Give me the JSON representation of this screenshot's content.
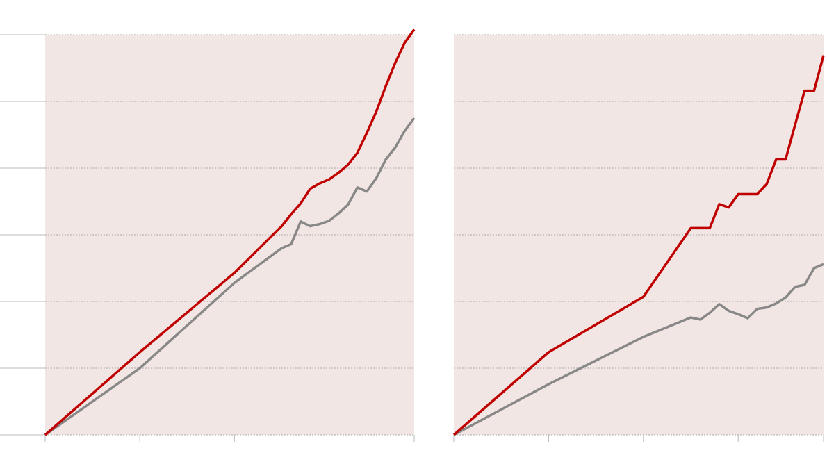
{
  "chart_data": [
    {
      "type": "line",
      "xlim": [
        0,
        3.9
      ],
      "xticks": [
        0,
        1,
        2,
        3,
        3.9
      ],
      "ylim": [
        0,
        6
      ],
      "yticks": [
        0,
        1,
        2,
        3,
        4,
        5,
        6
      ],
      "grid": true,
      "background": "#f2e6e4",
      "series": [
        {
          "color": "#c00000",
          "x": [
            0,
            1,
            2,
            2.5,
            2.6,
            2.7,
            2.8,
            2.9,
            3.0,
            3.1,
            3.2,
            3.3,
            3.4,
            3.5,
            3.6,
            3.7,
            3.8,
            3.9
          ],
          "values": [
            0,
            1.24,
            2.43,
            3.13,
            3.31,
            3.47,
            3.69,
            3.77,
            3.83,
            3.93,
            4.05,
            4.23,
            4.53,
            4.85,
            5.23,
            5.58,
            5.88,
            6.08
          ]
        },
        {
          "color": "#888888",
          "x": [
            0,
            1,
            2,
            2.5,
            2.6,
            2.7,
            2.8,
            2.9,
            3.0,
            3.1,
            3.2,
            3.3,
            3.4,
            3.5,
            3.6,
            3.7,
            3.8,
            3.9
          ],
          "values": [
            0,
            1.0,
            2.28,
            2.8,
            2.86,
            3.2,
            3.13,
            3.16,
            3.21,
            3.32,
            3.45,
            3.71,
            3.65,
            3.85,
            4.13,
            4.31,
            4.56,
            4.75
          ]
        }
      ]
    },
    {
      "type": "line",
      "xlim": [
        0,
        3.9
      ],
      "xticks": [
        0,
        1,
        2,
        3,
        3.9
      ],
      "ylim": [
        0,
        6
      ],
      "yticks": [
        0,
        1,
        2,
        3,
        4,
        5,
        6
      ],
      "grid": true,
      "background": "#f2e6e4",
      "series": [
        {
          "color": "#c00000",
          "x": [
            0,
            1,
            2,
            2.5,
            2.7,
            2.8,
            2.9,
            3.0,
            3.1,
            3.2,
            3.3,
            3.4,
            3.5,
            3.6,
            3.7,
            3.8,
            3.9
          ],
          "values": [
            0,
            1.24,
            2.07,
            3.1,
            3.1,
            3.46,
            3.41,
            3.61,
            3.61,
            3.61,
            3.76,
            4.13,
            4.13,
            4.65,
            5.16,
            5.16,
            5.69
          ]
        },
        {
          "color": "#888888",
          "x": [
            0,
            1,
            2,
            2.5,
            2.6,
            2.7,
            2.8,
            2.9,
            3.0,
            3.1,
            3.2,
            3.3,
            3.4,
            3.5,
            3.6,
            3.7,
            3.8,
            3.9
          ],
          "values": [
            0,
            0.76,
            1.47,
            1.76,
            1.73,
            1.83,
            1.96,
            1.86,
            1.81,
            1.75,
            1.89,
            1.91,
            1.97,
            2.06,
            2.22,
            2.25,
            2.5,
            2.56
          ]
        }
      ]
    }
  ]
}
